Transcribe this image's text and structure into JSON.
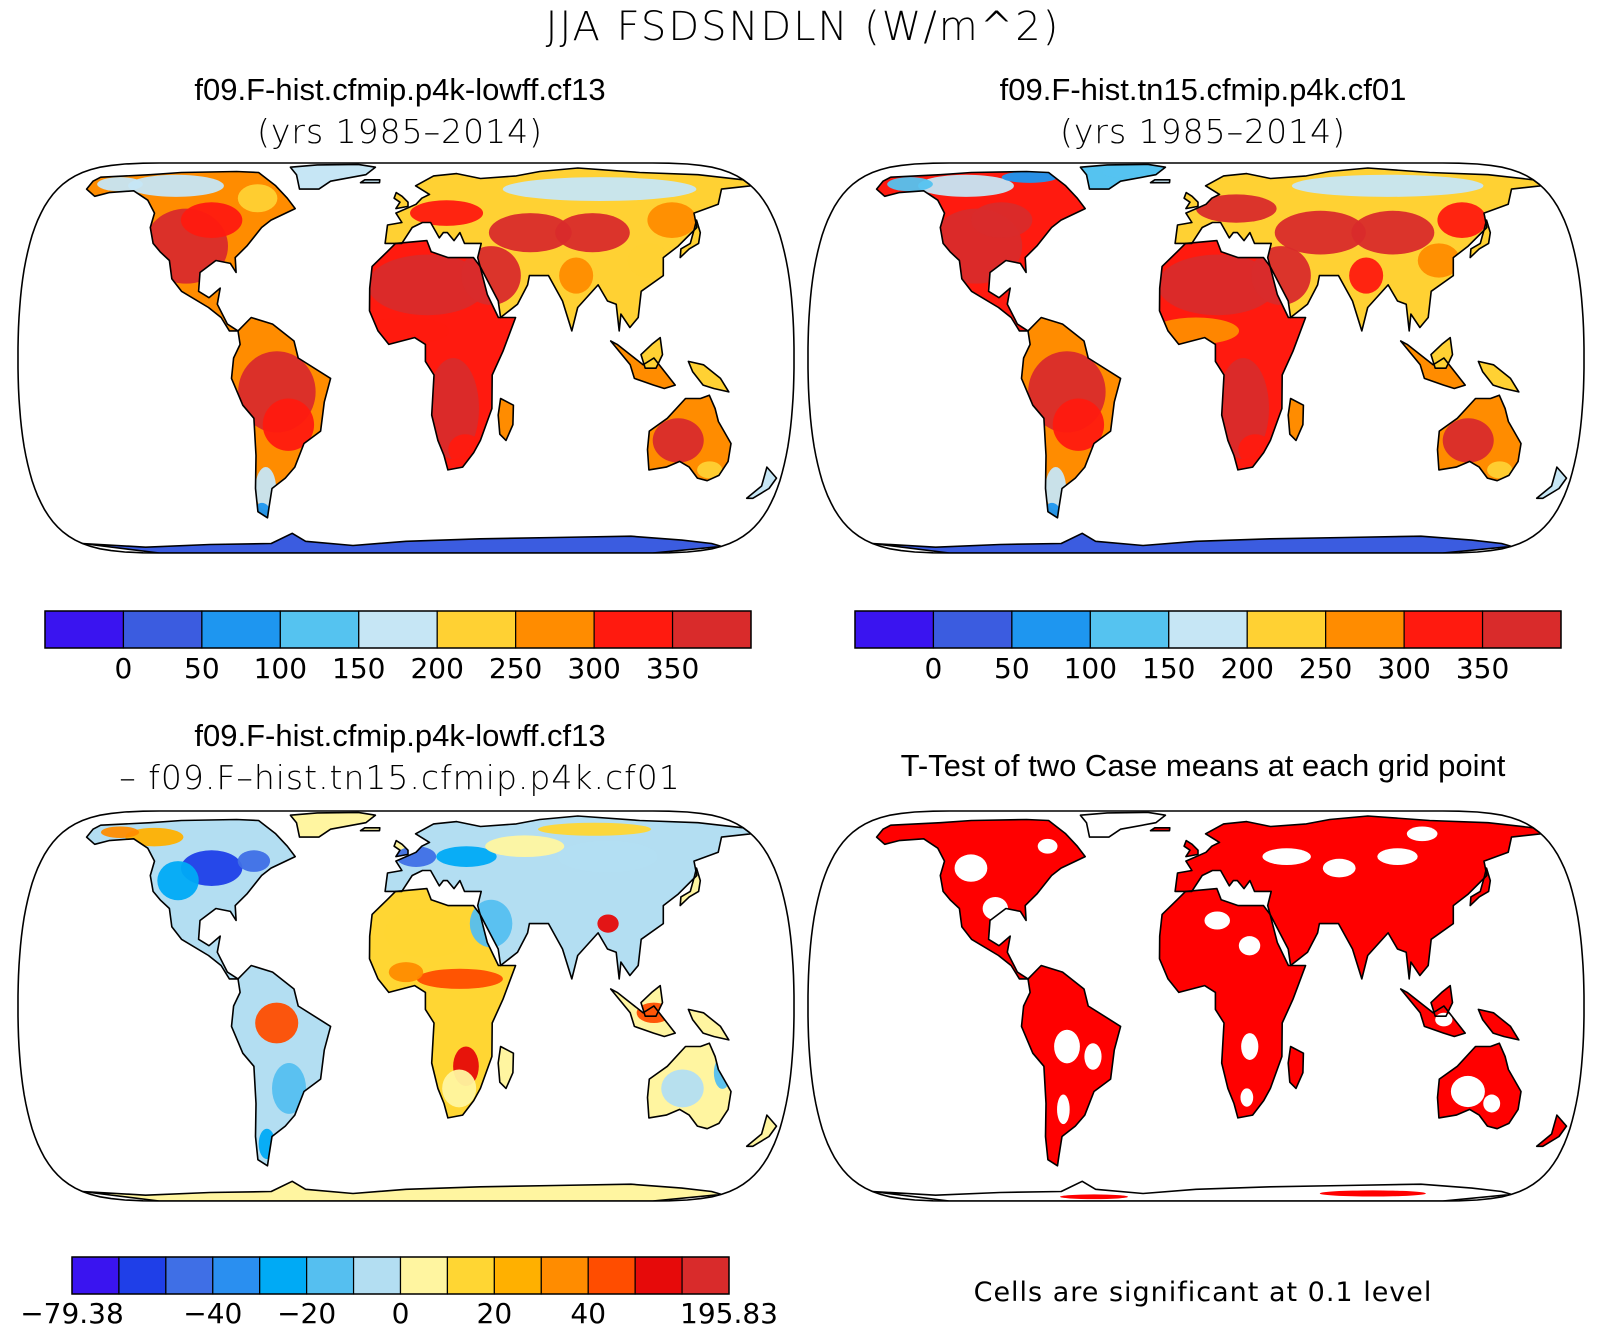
{
  "figure_title": "JJA FSDSNDLN (W/m^2)",
  "colors": {
    "abs_scale": [
      "#3a14f0",
      "#3b5ce0",
      "#1e96f0",
      "#55c3f0",
      "#c6e6f5",
      "#ffd133",
      "#ff8c00",
      "#ff1a0f",
      "#d92b2b"
    ],
    "diff_scale": [
      "#3a14f0",
      "#1f3fe8",
      "#3f6fe6",
      "#2a8ff0",
      "#00aaf5",
      "#55bff0",
      "#b3def2",
      "#fff5a0",
      "#ffd633",
      "#ffb000",
      "#ff8c00",
      "#ff4d00",
      "#e60a0a",
      "#d92b2b"
    ],
    "land_outline": "#000000",
    "antarctica_abs": "#3b5ce0",
    "antarctica_diff": "#fff5a0",
    "significant": "#ff0000"
  },
  "panels": {
    "top_left": {
      "title": "f09.F-hist.cfmip.p4k-lowff.cf13",
      "subtitle": "(yrs 1985–2014)"
    },
    "top_right": {
      "title": "f09.F-hist.tn15.cfmip.p4k.cf01",
      "subtitle": "(yrs 1985–2014)"
    },
    "bottom_left": {
      "title": "f09.F-hist.cfmip.p4k-lowff.cf13",
      "subtitle": "– f09.F–hist.tn15.cfmip.p4k.cf01"
    },
    "bottom_right": {
      "title": "T-Test of two Case means at each grid point",
      "note": "Cells are significant at 0.1 level"
    }
  },
  "abs_colorbar": {
    "ticks": [
      "0",
      "50",
      "100",
      "150",
      "200",
      "250",
      "300",
      "350"
    ]
  },
  "diff_colorbar": {
    "ticks": [
      "−79.38",
      "−40",
      "−20",
      "0",
      "20",
      "40",
      "195.83"
    ]
  }
}
